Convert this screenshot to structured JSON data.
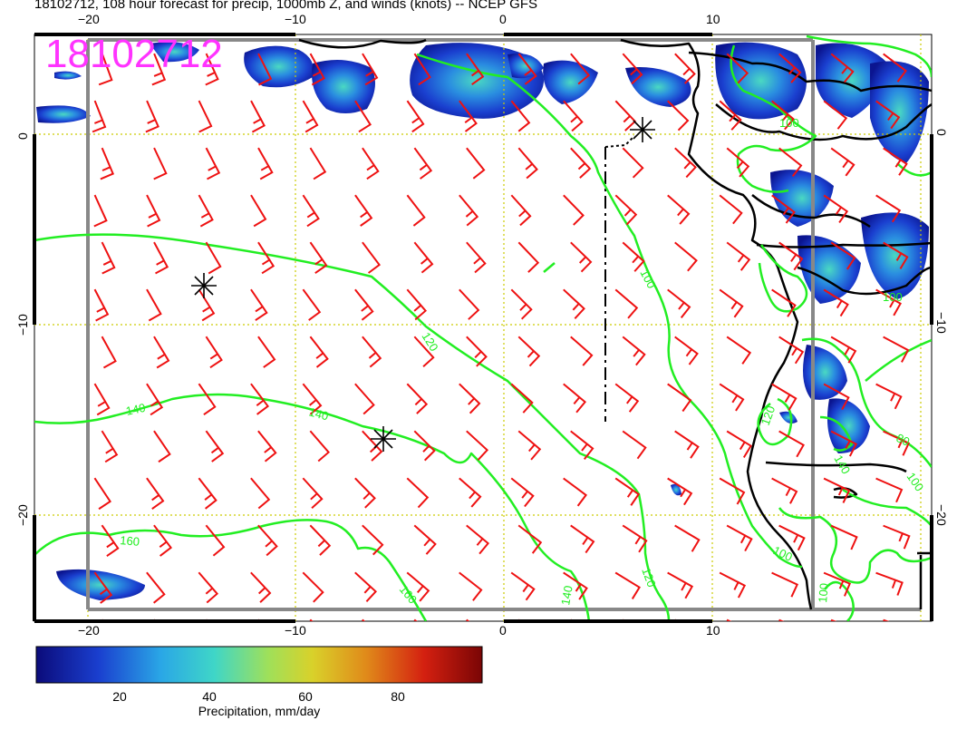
{
  "header": {
    "title": "18102712, 108 hour forecast for precip, 1000mb Z, and winds (knots) -- NCEP GFS",
    "stamp": "18102712"
  },
  "axes": {
    "lon_ticks": [
      "−20",
      "−10",
      "0",
      "10"
    ],
    "lat_ticks": [
      "0",
      "−10",
      "−20"
    ]
  },
  "contours": {
    "labels": [
      "100",
      "100",
      "100",
      "100",
      "120",
      "120",
      "140",
      "140",
      "140",
      "140",
      "160",
      "160",
      "120",
      "100",
      "80",
      "100"
    ]
  },
  "colorbar": {
    "ticks": [
      "20",
      "40",
      "60",
      "80"
    ],
    "label": "Precipitation, mm/day",
    "stops": [
      "#0b0b7a",
      "#1a3fcf",
      "#2aa7e6",
      "#3fd6c7",
      "#9fe05a",
      "#d9d12a",
      "#e08a1a",
      "#d42010",
      "#7a0505"
    ]
  },
  "colors": {
    "contour": "#22ee22",
    "wind_barb": "#ee1111",
    "gridline": "#cccc00",
    "coast": "#000000",
    "stamp": "#ff33ff"
  },
  "markers": {
    "count": 3,
    "icon": "asterisk-marker-icon"
  }
}
